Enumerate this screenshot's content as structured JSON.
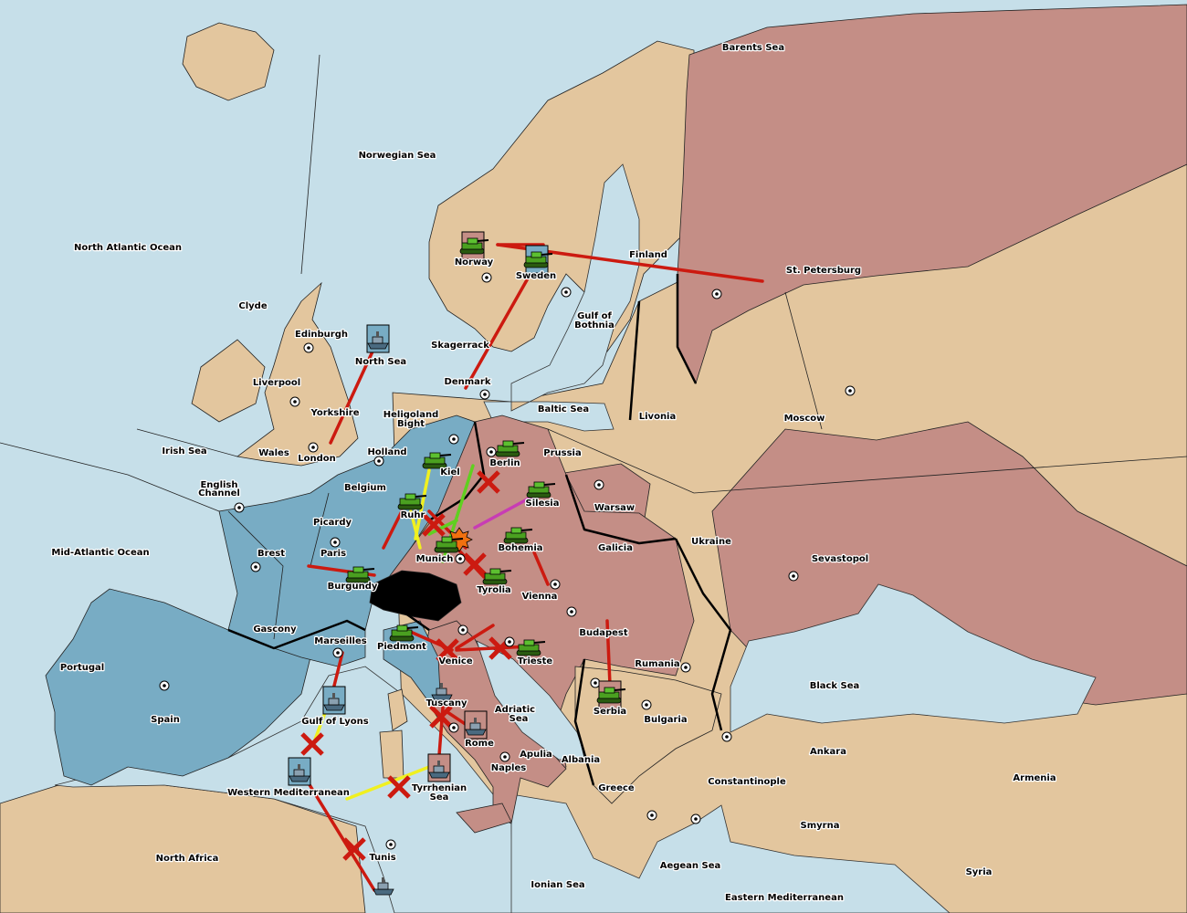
{
  "colors": {
    "ocean": "#c6dfe9",
    "neutral": "#e3c69e",
    "power_blue": "#78acc4",
    "power_rose": "#c48e86",
    "impassable": "#000000",
    "failed_order": "#cc1a10",
    "support": "#f0f020",
    "move_green": "#60d020",
    "move_magenta": "#c83cb4"
  },
  "labels": [
    "Barents Sea",
    "Norwegian Sea",
    "North Atlantic Ocean",
    "Finland",
    "St. Petersburg",
    "Norway",
    "Sweden",
    "Clyde",
    "Edinburgh",
    "Gulf of",
    "Bothnia",
    "North Sea",
    "Skagerrack",
    "Liverpool",
    "Denmark",
    "Baltic Sea",
    "Livonia",
    "Moscow",
    "Yorkshire",
    "Heligoland",
    "Bight",
    "Irish Sea",
    "Wales",
    "Holland",
    "London",
    "Prussia",
    "Kiel",
    "Berlin",
    "English",
    "Channel",
    "Belgium",
    "Silesia",
    "Warsaw",
    "Picardy",
    "Ruhr",
    "Ukraine",
    "Mid-Atlantic Ocean",
    "Brest",
    "Paris",
    "Munich",
    "Bohemia",
    "Galicia",
    "Sevastopol",
    "Burgundy",
    "Tyrolia",
    "Vienna",
    "Gascony",
    "Budapest",
    "Marseilles",
    "Piedmont",
    "Venice",
    "Trieste",
    "Portugal",
    "Rumania",
    "Black Sea",
    "Tuscany",
    "Adriatic",
    "Sea",
    "Serbia",
    "Spain",
    "Gulf of Lyons",
    "Bulgaria",
    "Rome",
    "Ankara",
    "Apulia",
    "Albania",
    "Naples",
    "Armenia",
    "Constantinople",
    "Western Mediterranean",
    "Tyrrhenian",
    "Sea",
    "Greece",
    "Smyrna",
    "North Africa",
    "Tunis",
    "Aegean Sea",
    "Syria",
    "Ionian Sea",
    "Eastern Mediterranean"
  ],
  "units": [
    {
      "type": "army",
      "territory": "Norway",
      "box": "rose"
    },
    {
      "type": "army",
      "territory": "Sweden",
      "box": "blue"
    },
    {
      "type": "fleet",
      "territory": "North Sea",
      "box": "blue"
    },
    {
      "type": "army",
      "territory": "Kiel"
    },
    {
      "type": "army",
      "territory": "Berlin"
    },
    {
      "type": "army",
      "territory": "Silesia"
    },
    {
      "type": "army",
      "territory": "Ruhr"
    },
    {
      "type": "army",
      "territory": "Munich"
    },
    {
      "type": "army",
      "territory": "Bohemia"
    },
    {
      "type": "army",
      "territory": "Tyrolia"
    },
    {
      "type": "army",
      "territory": "Burgundy"
    },
    {
      "type": "army",
      "territory": "Piedmont"
    },
    {
      "type": "army",
      "territory": "Trieste"
    },
    {
      "type": "army",
      "territory": "Serbia",
      "box": "rose"
    },
    {
      "type": "fleet",
      "territory": "Gulf of Lyons",
      "box": "blue"
    },
    {
      "type": "fleet",
      "territory": "Western Mediterranean",
      "box": "blue"
    },
    {
      "type": "fleet",
      "territory": "Tuscany"
    },
    {
      "type": "fleet",
      "territory": "Rome",
      "box": "rose"
    },
    {
      "type": "fleet",
      "territory": "Tyrrhenian Sea",
      "box": "rose"
    },
    {
      "type": "fleet",
      "territory": "Tunis"
    }
  ]
}
